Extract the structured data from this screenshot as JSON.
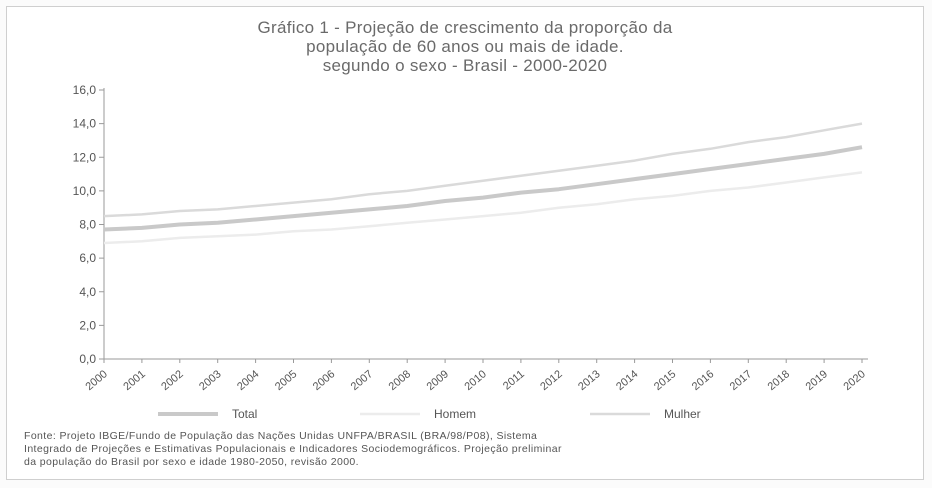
{
  "figure": {
    "title_lines": [
      "Gráfico 1 - Projeção de crescimento da proporção da",
      "população de 60 anos ou mais de idade.",
      "segundo o sexo - Brasil - 2000-2020"
    ],
    "source_lines": [
      "Fonte: Projeto IBGE/Fundo de População das Nações Unidas UNFPA/BRASIL (BRA/98/P08), Sistema",
      "Integrado de Projeções e Estimativas Populacionais e Indicadores Sociodemográficos. Projeção preliminar",
      "da população do Brasil por sexo e idade 1980-2050, revisão 2000."
    ]
  },
  "chart_data": {
    "type": "line",
    "title": "Gráfico 1 - Projeção de crescimento da proporção da população de 60 anos ou mais de idade. segundo o sexo - Brasil - 2000-2020",
    "xlabel": "",
    "ylabel": "",
    "x": [
      "2000",
      "2001",
      "2002",
      "2003",
      "2004",
      "2005",
      "2006",
      "2007",
      "2008",
      "2009",
      "2010",
      "2011",
      "2012",
      "2013",
      "2014",
      "2015",
      "2016",
      "2017",
      "2018",
      "2019",
      "2020"
    ],
    "ylim": [
      0,
      16
    ],
    "yticks": [
      "0,0",
      "2,0",
      "4,0",
      "6,0",
      "8,0",
      "10,0",
      "12,0",
      "14,0",
      "16,0"
    ],
    "grid": false,
    "legend_position": "bottom",
    "series": [
      {
        "name": "Total",
        "color": "#c9c9c9",
        "values": [
          7.7,
          7.8,
          8.0,
          8.1,
          8.3,
          8.5,
          8.7,
          8.9,
          9.1,
          9.4,
          9.6,
          9.9,
          10.1,
          10.4,
          10.7,
          11.0,
          11.3,
          11.6,
          11.9,
          12.2,
          12.6
        ]
      },
      {
        "name": "Homem",
        "color": "#ececec",
        "values": [
          6.9,
          7.0,
          7.2,
          7.3,
          7.4,
          7.6,
          7.7,
          7.9,
          8.1,
          8.3,
          8.5,
          8.7,
          9.0,
          9.2,
          9.5,
          9.7,
          10.0,
          10.2,
          10.5,
          10.8,
          11.1
        ]
      },
      {
        "name": "Mulher",
        "color": "#dadada",
        "values": [
          8.5,
          8.6,
          8.8,
          8.9,
          9.1,
          9.3,
          9.5,
          9.8,
          10.0,
          10.3,
          10.6,
          10.9,
          11.2,
          11.5,
          11.8,
          12.2,
          12.5,
          12.9,
          13.2,
          13.6,
          14.0
        ]
      }
    ]
  }
}
